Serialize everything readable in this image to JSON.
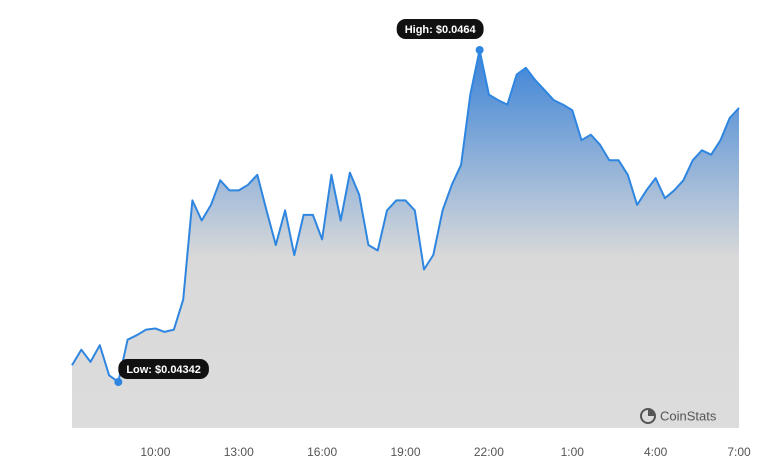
{
  "chart_data": {
    "type": "area",
    "color": "#2f86e0",
    "categories": [
      null,
      null,
      null,
      null,
      null,
      null,
      null,
      null,
      null,
      "10:00",
      null,
      null,
      null,
      null,
      null,
      null,
      null,
      null,
      "13:00",
      null,
      null,
      null,
      null,
      null,
      null,
      null,
      null,
      "16:00",
      null,
      null,
      null,
      null,
      null,
      null,
      null,
      null,
      "19:00",
      null,
      null,
      null,
      null,
      null,
      null,
      null,
      null,
      "22:00",
      null,
      null,
      null,
      null,
      null,
      null,
      null,
      null,
      "1:00",
      null,
      null,
      null,
      null,
      null,
      null,
      null,
      null,
      "4:00",
      null,
      null,
      null,
      null,
      null,
      null,
      null,
      null,
      "7:00"
    ],
    "values": [
      0.04357,
      0.04371,
      0.0436,
      0.04375,
      0.04348,
      0.04342,
      0.0438,
      0.04384,
      0.04389,
      0.0439,
      0.04387,
      0.04389,
      0.04416,
      0.04505,
      0.04487,
      0.04501,
      0.04523,
      0.04514,
      0.04514,
      0.04519,
      0.04528,
      0.04496,
      0.04465,
      0.04496,
      0.04456,
      0.04492,
      0.04492,
      0.0447,
      0.04528,
      0.04487,
      0.0453,
      0.0451,
      0.04465,
      0.0446,
      0.04496,
      0.04505,
      0.04505,
      0.04496,
      0.04443,
      0.04456,
      0.04496,
      0.04519,
      0.04537,
      0.046,
      0.0464,
      0.046,
      0.04595,
      0.04591,
      0.04618,
      0.04624,
      0.04613,
      0.04604,
      0.04595,
      0.04591,
      0.04586,
      0.04559,
      0.04564,
      0.04555,
      0.04541,
      0.04541,
      0.04528,
      0.04501,
      0.04514,
      0.04525,
      0.04507,
      0.04514,
      0.04523,
      0.04541,
      0.0455,
      0.04546,
      0.04559,
      0.04579,
      0.04588
    ],
    "annotations": [
      {
        "value": 0.0464,
        "label": "High: $0.0464"
      },
      {
        "value": 0.04342,
        "label": "Low: $0.04342"
      }
    ],
    "watermark": "CoinStats"
  }
}
